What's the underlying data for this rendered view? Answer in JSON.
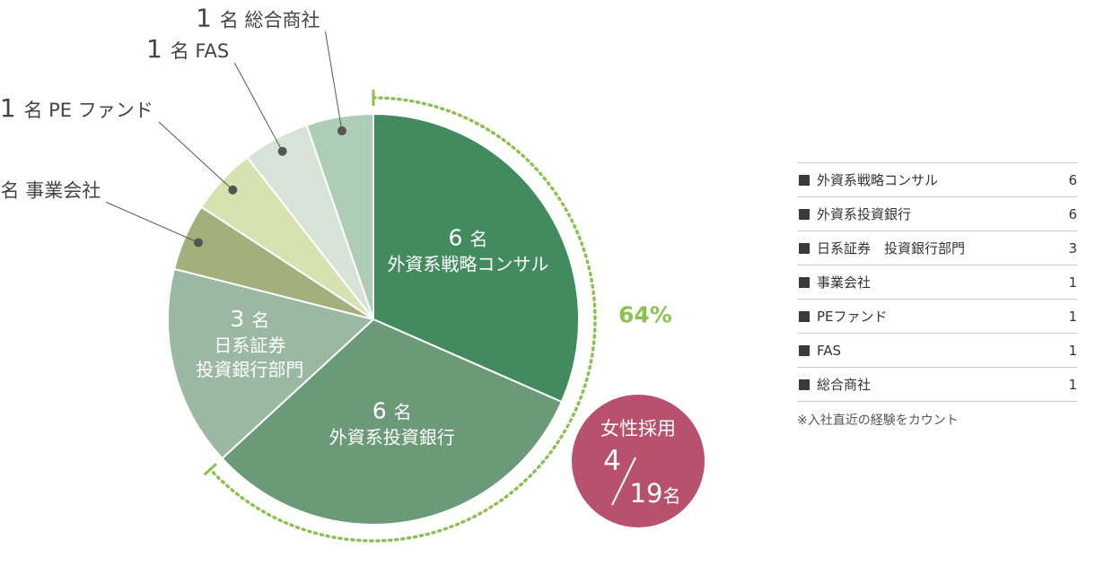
{
  "chart_data": {
    "type": "pie",
    "unit": "名",
    "slices": [
      {
        "label": "外資系戦略コンサル",
        "label_lines": [
          "外資系戦略コンサル"
        ],
        "value": 6,
        "color": "#428b5e"
      },
      {
        "label": "外資系投資銀行",
        "label_lines": [
          "外資系投資銀行"
        ],
        "value": 6,
        "color": "#6a9a78"
      },
      {
        "label": "日系証券　投資銀行部門",
        "label_lines": [
          "日系証券",
          "投資銀行部門"
        ],
        "value": 3,
        "color": "#9ab8a2"
      },
      {
        "label": "事業会社",
        "value": 1,
        "color": "#a2b07b"
      },
      {
        "label": "PEファンド",
        "outside_label": "PE ファンド",
        "value": 1,
        "color": "#d8e2b0"
      },
      {
        "label": "FAS",
        "value": 1,
        "color": "#d7e3d6"
      },
      {
        "label": "総合商社",
        "value": 1,
        "color": "#aecdb6"
      }
    ],
    "highlight_arc": {
      "percent_label": "64%",
      "color": "#8cc152",
      "covers": [
        "外資系戦略コンサル",
        "外資系投資銀行"
      ]
    },
    "badge": {
      "title": "女性採用",
      "numerator": "4",
      "denominator": "19",
      "unit": "名",
      "color": "#b7516e"
    }
  },
  "legend": {
    "rows": [
      {
        "label": "外資系戦略コンサル",
        "value": "6"
      },
      {
        "label": "外資系投資銀行",
        "value": "6"
      },
      {
        "label": "日系証券　投資銀行部門",
        "value": "3"
      },
      {
        "label": "事業会社",
        "value": "1"
      },
      {
        "label": "PEファンド",
        "value": "1"
      },
      {
        "label": "FAS",
        "value": "1"
      },
      {
        "label": "総合商社",
        "value": "1"
      }
    ],
    "note": "※入社直近の経験をカウント"
  }
}
